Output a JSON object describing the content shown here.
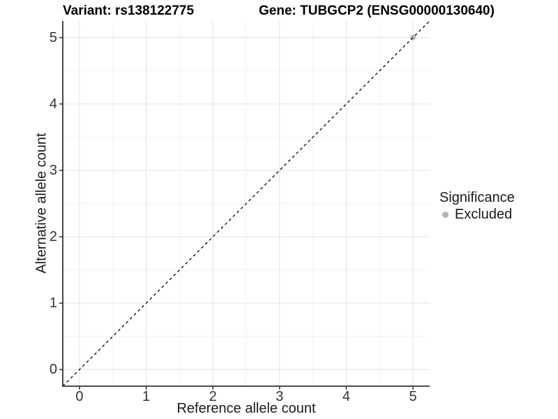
{
  "chart_data": {
    "type": "scatter",
    "title_left": "Variant: rs138122775",
    "title_right": "Gene: TUBGCP2 (ENSG00000130640)",
    "xlabel": "Reference allele count",
    "ylabel": "Alternative allele count",
    "xlim": [
      -0.25,
      5.25
    ],
    "ylim": [
      -0.25,
      5.25
    ],
    "xticks": [
      0,
      1,
      2,
      3,
      4,
      5
    ],
    "yticks": [
      0,
      1,
      2,
      3,
      4,
      5
    ],
    "x_minor_ticks": [
      0.5,
      1.5,
      2.5,
      3.5,
      4.5
    ],
    "y_minor_ticks": [
      0.5,
      1.5,
      2.5,
      3.5,
      4.5
    ],
    "grid": true,
    "identity_line": {
      "style": "dashed",
      "slope": 1,
      "intercept": 0,
      "color": "#000000"
    },
    "series": [
      {
        "name": "Excluded",
        "color": "#b4b4b4",
        "points": [
          [
            5,
            5
          ]
        ]
      }
    ],
    "legend": {
      "title": "Significance",
      "position": "right",
      "items": [
        {
          "label": "Excluded",
          "color": "#b4b4b4"
        }
      ]
    },
    "colors": {
      "grid_major": "#e4e4e4",
      "grid_minor": "#f1f1f1",
      "axis_line": "#333333",
      "tick_mark": "#333333"
    }
  }
}
